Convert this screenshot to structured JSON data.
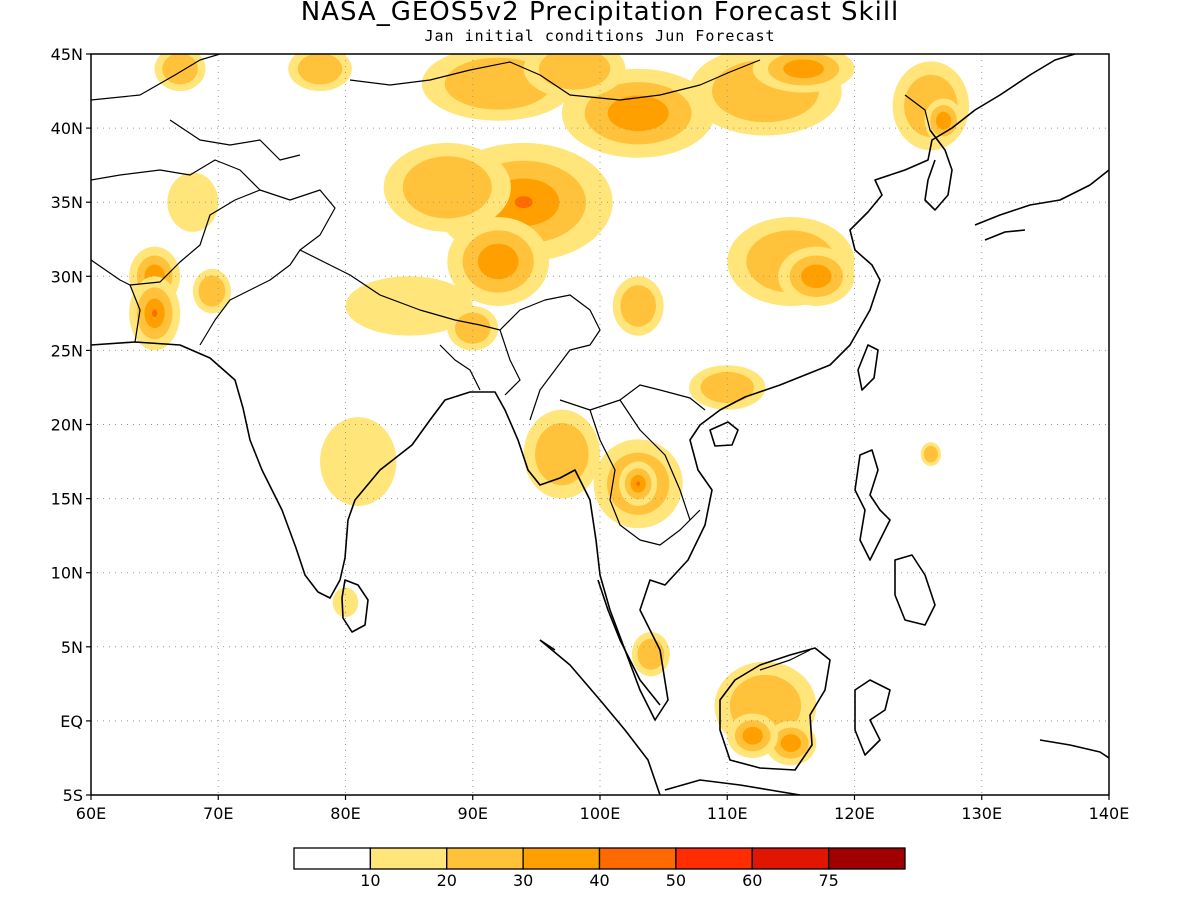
{
  "title": "NASA_GEOS5v2 Precipitation Forecast Skill",
  "subtitle": "Jan initial conditions  Jun Forecast",
  "map": {
    "lon_range": [
      60,
      140
    ],
    "lat_range": [
      -5,
      45
    ],
    "x_ticks": [
      "60E",
      "70E",
      "80E",
      "90E",
      "100E",
      "110E",
      "120E",
      "130E",
      "140E"
    ],
    "y_ticks": [
      "5S",
      "EQ",
      "5N",
      "10N",
      "15N",
      "20N",
      "25N",
      "30N",
      "35N",
      "40N",
      "45N"
    ],
    "grid": "dotted"
  },
  "colorbar": {
    "labels": [
      "10",
      "20",
      "30",
      "40",
      "50",
      "60",
      "75"
    ],
    "colors": [
      "#ffffff",
      "#ffe57a",
      "#ffc23a",
      "#ffa000",
      "#ff6a00",
      "#ff2d00",
      "#e01600",
      "#a00000"
    ]
  },
  "skill_blobs": [
    {
      "lon": 94,
      "lat": 35,
      "rx": 7,
      "ry": 4,
      "level": 4
    },
    {
      "lon": 92,
      "lat": 31,
      "rx": 4,
      "ry": 3,
      "level": 3
    },
    {
      "lon": 88,
      "lat": 36,
      "rx": 5,
      "ry": 3,
      "level": 2
    },
    {
      "lon": 103,
      "lat": 41,
      "rx": 6,
      "ry": 3,
      "level": 3
    },
    {
      "lon": 92,
      "lat": 43,
      "rx": 6,
      "ry": 2.5,
      "level": 2
    },
    {
      "lon": 98,
      "lat": 44,
      "rx": 4,
      "ry": 2,
      "level": 2
    },
    {
      "lon": 113,
      "lat": 42.5,
      "rx": 6,
      "ry": 3,
      "level": 2
    },
    {
      "lon": 116,
      "lat": 44,
      "rx": 4,
      "ry": 1.6,
      "level": 3
    },
    {
      "lon": 126,
      "lat": 41.5,
      "rx": 3,
      "ry": 3,
      "level": 2
    },
    {
      "lon": 127,
      "lat": 40.5,
      "rx": 1.5,
      "ry": 1.5,
      "level": 3
    },
    {
      "lon": 115,
      "lat": 31,
      "rx": 5,
      "ry": 3,
      "level": 2
    },
    {
      "lon": 117,
      "lat": 30,
      "rx": 3,
      "ry": 2,
      "level": 3
    },
    {
      "lon": 65,
      "lat": 30,
      "rx": 2,
      "ry": 2,
      "level": 3
    },
    {
      "lon": 65,
      "lat": 27.5,
      "rx": 2,
      "ry": 2.5,
      "level": 4
    },
    {
      "lon": 69.5,
      "lat": 29,
      "rx": 1.5,
      "ry": 1.5,
      "level": 2
    },
    {
      "lon": 68,
      "lat": 35,
      "rx": 2,
      "ry": 2,
      "level": 1
    },
    {
      "lon": 67,
      "lat": 44,
      "rx": 2,
      "ry": 1.5,
      "level": 2
    },
    {
      "lon": 78,
      "lat": 44,
      "rx": 2.5,
      "ry": 1.5,
      "level": 2
    },
    {
      "lon": 85,
      "lat": 28,
      "rx": 5,
      "ry": 2,
      "level": 1
    },
    {
      "lon": 90,
      "lat": 26.5,
      "rx": 2,
      "ry": 1.5,
      "level": 2
    },
    {
      "lon": 81,
      "lat": 17.5,
      "rx": 3,
      "ry": 3,
      "level": 1
    },
    {
      "lon": 97,
      "lat": 18,
      "rx": 3,
      "ry": 3,
      "level": 2
    },
    {
      "lon": 103,
      "lat": 16,
      "rx": 3.5,
      "ry": 3,
      "level": 3
    },
    {
      "lon": 103,
      "lat": 16,
      "rx": 1.5,
      "ry": 1.5,
      "level": 4
    },
    {
      "lon": 110,
      "lat": 22.5,
      "rx": 3,
      "ry": 1.5,
      "level": 2
    },
    {
      "lon": 103,
      "lat": 28,
      "rx": 2,
      "ry": 2,
      "level": 2
    },
    {
      "lon": 113,
      "lat": 1,
      "rx": 4,
      "ry": 3,
      "level": 2
    },
    {
      "lon": 115,
      "lat": -1.5,
      "rx": 2,
      "ry": 1.5,
      "level": 3
    },
    {
      "lon": 112,
      "lat": -1,
      "rx": 2,
      "ry": 1.5,
      "level": 3
    },
    {
      "lon": 104,
      "lat": 4.5,
      "rx": 1.5,
      "ry": 1.5,
      "level": 2
    },
    {
      "lon": 80,
      "lat": 8,
      "rx": 1,
      "ry": 1,
      "level": 1
    },
    {
      "lon": 126,
      "lat": 18,
      "rx": 0.8,
      "ry": 0.8,
      "level": 2
    }
  ]
}
